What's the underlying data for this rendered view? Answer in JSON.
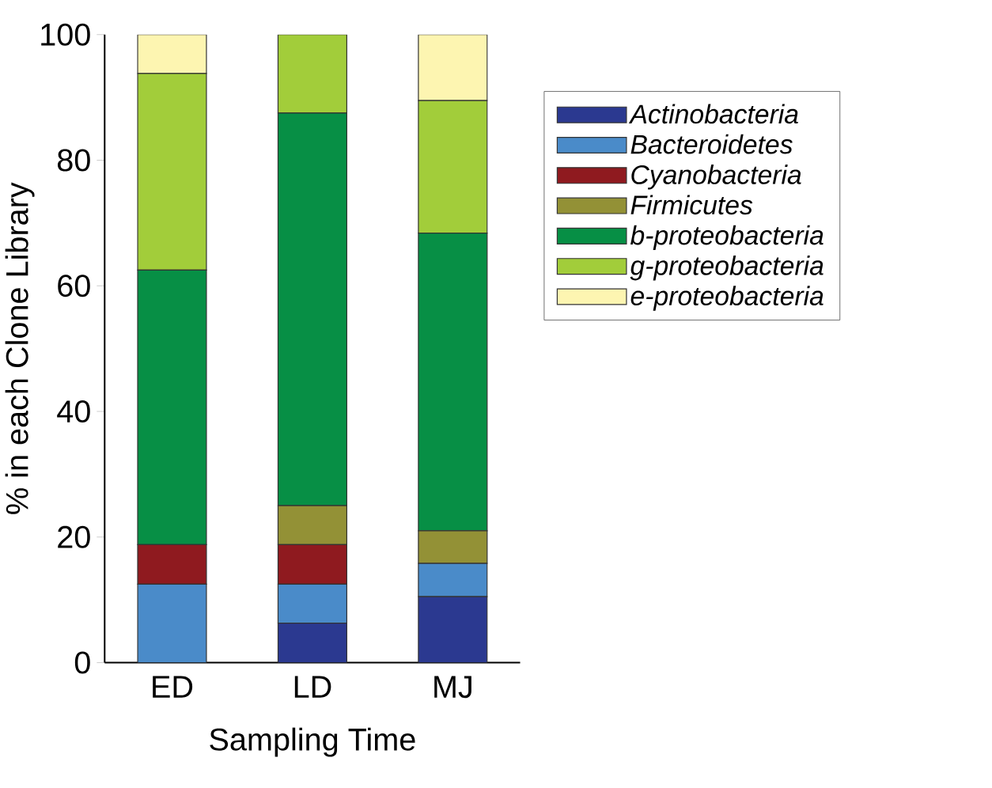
{
  "chart_data": {
    "type": "bar",
    "stacked": true,
    "xlabel": "Sampling Time",
    "ylabel": "% in each Clone Library",
    "categories": [
      "ED",
      "LD",
      "MJ"
    ],
    "series": [
      {
        "name": "*Actinobacteria*",
        "color": "#2b3990",
        "values": [
          0,
          6.3,
          10.5
        ]
      },
      {
        "name": "*Bacteroidetes*",
        "color": "#4a8bc9",
        "values": [
          12.5,
          6.2,
          5.3
        ]
      },
      {
        "name": "*Cyanobacteria*",
        "color": "#8f1a1f",
        "values": [
          6.3,
          6.3,
          0
        ]
      },
      {
        "name": "*Firmicutes*",
        "color": "#939136",
        "values": [
          0,
          6.2,
          5.2
        ]
      },
      {
        "name": "*b-proteobacteria*",
        "color": "#078f45",
        "values": [
          43.7,
          62.5,
          47.4
        ]
      },
      {
        "name": "*g-proteobacteria*",
        "color": "#a2cd3a",
        "values": [
          31.3,
          12.5,
          21.1
        ]
      },
      {
        "name": "*e-proteobacteria*",
        "color": "#fdf5b1",
        "values": [
          6.2,
          0,
          10.5
        ]
      }
    ],
    "ylim": [
      0,
      100
    ],
    "yticks": [
      0,
      20,
      40,
      60,
      80,
      100
    ],
    "legend": "right",
    "grid": false
  }
}
